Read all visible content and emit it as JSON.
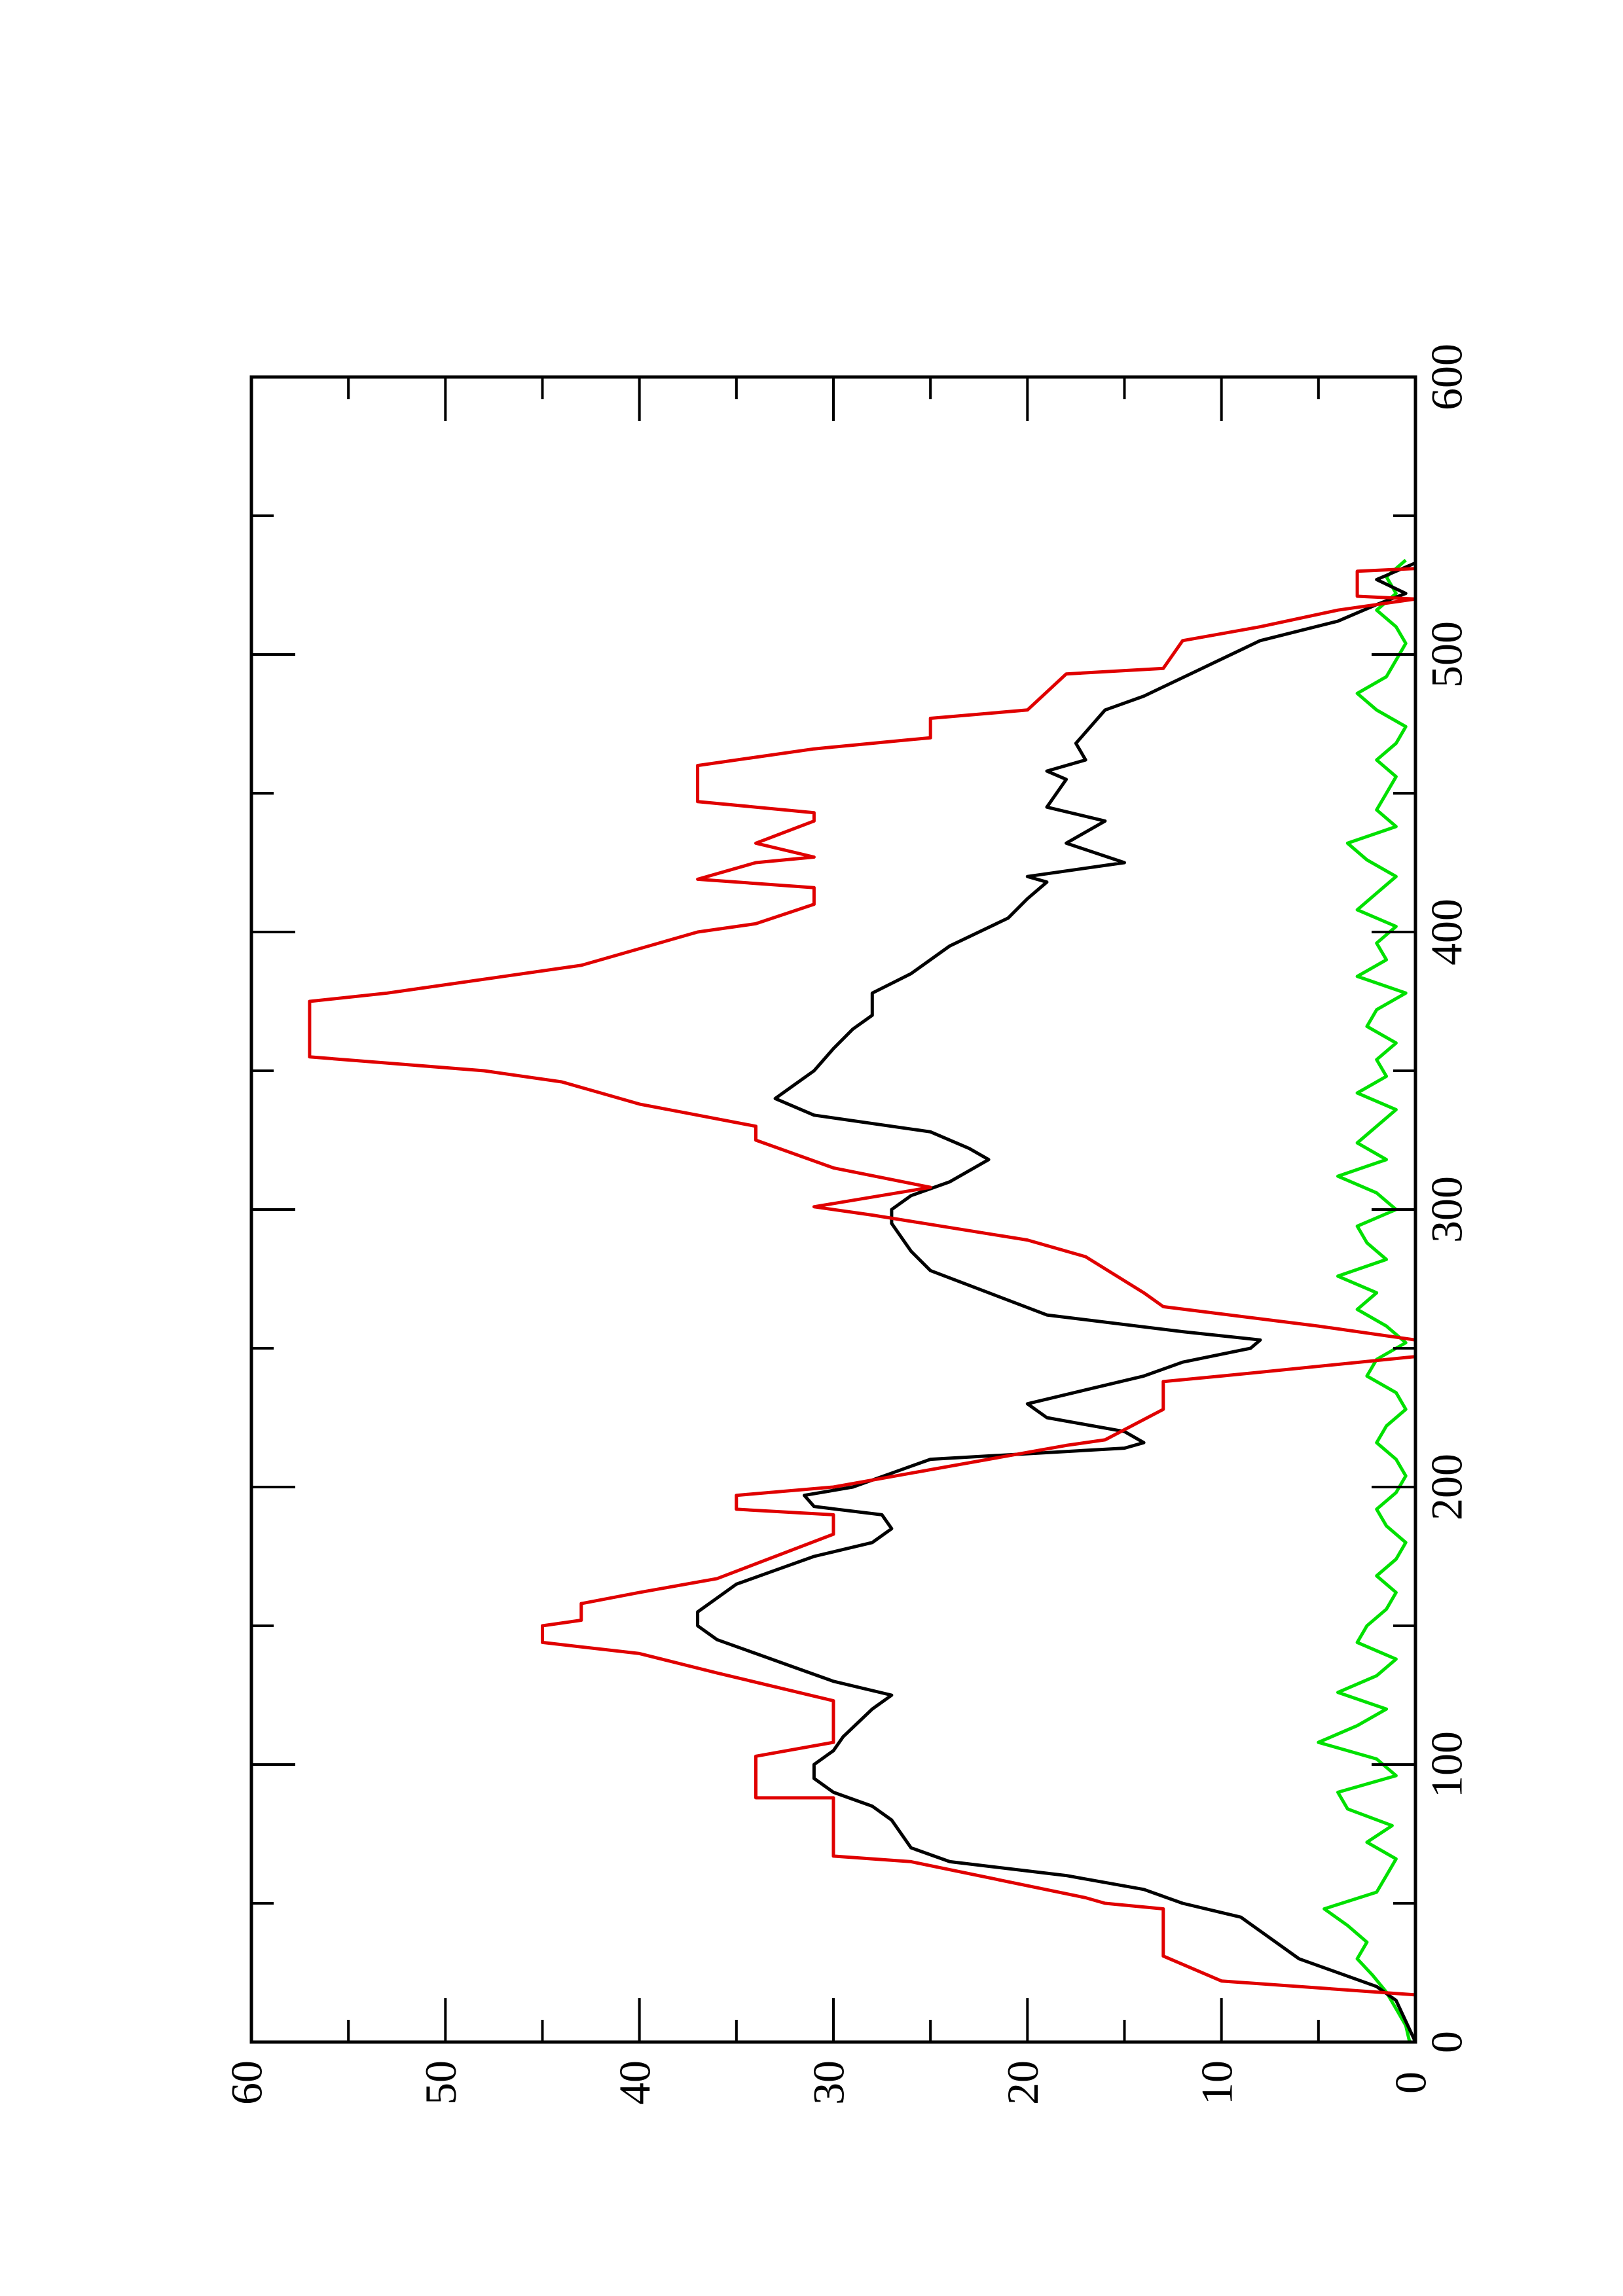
{
  "chart_data": {
    "type": "line",
    "xlim": [
      0,
      600
    ],
    "xticks": [
      0,
      100,
      200,
      300,
      400,
      500,
      600
    ],
    "xminor_ticks": [
      50,
      150,
      250,
      350,
      450,
      550
    ],
    "ylim": [
      0,
      60
    ],
    "yticks": [
      0,
      10,
      20,
      30,
      40,
      50,
      60
    ],
    "yminor_ticks": [
      5,
      15,
      25,
      35,
      45,
      55
    ],
    "rotated": true,
    "series": [
      {
        "color": "#00e000",
        "x": [
          0,
          6,
          12,
          18,
          24,
          30,
          36,
          42,
          48,
          54,
          60,
          66,
          72,
          78,
          84,
          90,
          96,
          102,
          108,
          114,
          120,
          126,
          132,
          138,
          144,
          150,
          156,
          162,
          168,
          174,
          180,
          186,
          192,
          198,
          204,
          210,
          216,
          222,
          228,
          234,
          240,
          246,
          252,
          258,
          264,
          270,
          276,
          282,
          288,
          294,
          300,
          306,
          312,
          318,
          324,
          330,
          336,
          342,
          348,
          354,
          360,
          366,
          372,
          378,
          384,
          390,
          396,
          402,
          408,
          414,
          420,
          426,
          432,
          438,
          444,
          450,
          456,
          462,
          468,
          474,
          480,
          486,
          492,
          498,
          504,
          510,
          516,
          522,
          528,
          534
        ],
        "values": [
          0.3,
          0.5,
          1,
          1.5,
          2.2,
          3.0,
          2.5,
          3.5,
          4.7,
          2,
          1.5,
          1,
          2.5,
          1.2,
          3.5,
          4,
          1,
          2,
          5,
          3,
          1.5,
          4,
          2,
          1,
          3,
          2.5,
          1.5,
          1,
          2,
          1,
          0.5,
          1.5,
          2,
          1,
          0.5,
          1,
          2,
          1.5,
          0.5,
          1,
          2.5,
          2,
          0.5,
          1.5,
          3,
          2,
          4,
          1.5,
          2.5,
          3,
          1,
          2,
          4,
          1.5,
          3,
          2,
          1,
          3,
          1.5,
          2,
          1,
          2.5,
          2,
          0.5,
          3,
          1.5,
          2,
          1,
          3,
          2,
          1,
          2.5,
          3.5,
          1,
          2,
          1.5,
          1,
          2,
          1,
          0.5,
          2,
          3,
          1.5,
          1,
          0.5,
          1,
          2,
          1,
          1.5,
          0.5
        ]
      },
      {
        "color": "#000000",
        "x": [
          0,
          15,
          20,
          30,
          40,
          45,
          50,
          55,
          60,
          65,
          70,
          80,
          85,
          90,
          95,
          100,
          105,
          110,
          120,
          125,
          130,
          135,
          140,
          145,
          150,
          155,
          160,
          165,
          170,
          175,
          180,
          185,
          190,
          193,
          197,
          200,
          205,
          210,
          214,
          216,
          220,
          225,
          230,
          235,
          240,
          245,
          250,
          253,
          256,
          262,
          270,
          278,
          285,
          295,
          300,
          305,
          310,
          318,
          322,
          328,
          334,
          340,
          345,
          350,
          358,
          365,
          370,
          378,
          385,
          395,
          405,
          412,
          418,
          420,
          425,
          432,
          440,
          445,
          455,
          458,
          462,
          468,
          480,
          485,
          495,
          505,
          512,
          518,
          522,
          527,
          533
        ],
        "values": [
          0,
          1,
          2,
          6,
          8,
          9,
          12,
          14,
          18,
          24,
          26,
          27,
          28,
          30,
          31,
          31,
          30,
          29.5,
          28,
          27,
          30,
          32,
          34,
          36,
          37,
          37,
          36,
          35,
          33,
          31,
          28,
          27,
          27.5,
          31,
          31.5,
          29,
          27,
          25,
          15,
          14,
          15,
          19,
          20,
          17,
          14,
          12,
          8.5,
          8,
          12,
          19,
          22,
          25,
          26,
          27,
          27,
          26,
          24,
          22,
          23,
          25,
          31,
          33,
          32,
          31,
          30,
          29,
          28,
          28,
          26,
          24,
          21,
          20,
          19,
          20,
          15,
          18,
          16,
          19,
          18,
          19,
          17,
          17.5,
          16,
          14,
          11,
          8,
          4,
          2,
          0.5,
          2,
          0
        ]
      },
      {
        "color": "#e00000",
        "x": [
          0,
          17,
          22,
          31,
          48,
          50,
          52,
          65,
          67,
          88,
          88,
          103,
          108,
          123,
          133,
          140,
          144,
          150,
          152,
          158,
          162,
          167,
          183,
          190,
          192,
          197,
          200,
          215,
          217,
          228,
          238,
          240,
          247,
          253,
          258,
          265,
          270,
          283,
          289,
          298,
          301,
          308,
          315,
          325,
          330,
          334,
          338,
          342,
          346,
          350,
          355,
          375,
          378,
          388,
          400,
          403,
          410,
          416,
          419,
          425,
          427,
          432,
          440,
          443,
          447,
          460,
          466,
          470,
          477,
          480,
          493,
          495,
          505,
          510,
          516,
          520,
          521,
          530,
          531,
          533
        ],
        "values": [
          0,
          0,
          10,
          13,
          13,
          16,
          17,
          26,
          30,
          30,
          34,
          34,
          30,
          30,
          36,
          40,
          45,
          45,
          43,
          43,
          40,
          36,
          30,
          30,
          35,
          35,
          30,
          18,
          16,
          13,
          13,
          10,
          0,
          0,
          5,
          13,
          14,
          17,
          20,
          28,
          31,
          25,
          30,
          34,
          34,
          37,
          40,
          42,
          44,
          48,
          57,
          57,
          53,
          43,
          37,
          34,
          31,
          31,
          37,
          34,
          31,
          34,
          31,
          31,
          37,
          37,
          31,
          25,
          25,
          20,
          18,
          13,
          12,
          8,
          4,
          0,
          3,
          3,
          0,
          0
        ]
      }
    ]
  }
}
